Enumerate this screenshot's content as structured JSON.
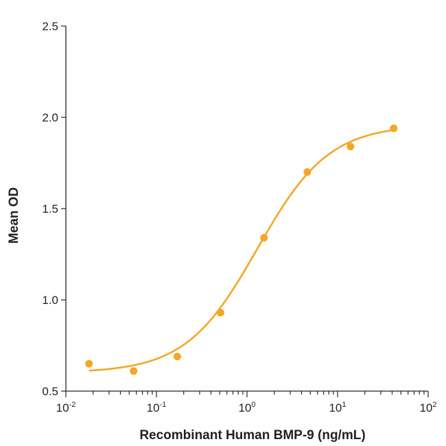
{
  "chart_data": {
    "type": "scatter",
    "title": "",
    "xlabel": "Recombinant Human BMP-9 (ng/mL)",
    "ylabel": "Mean OD",
    "x_scale": "log",
    "xlim": [
      0.01,
      100
    ],
    "ylim": [
      0.5,
      2.5
    ],
    "x_ticks": [
      {
        "value": 0.01,
        "base": "10",
        "exp": "-2"
      },
      {
        "value": 0.1,
        "base": "10",
        "exp": "-1"
      },
      {
        "value": 1,
        "base": "10",
        "exp": "0"
      },
      {
        "value": 10,
        "base": "10",
        "exp": "1"
      },
      {
        "value": 100,
        "base": "10",
        "exp": "2"
      }
    ],
    "y_ticks": [
      {
        "value": 0.5,
        "label": "0.5"
      },
      {
        "value": 1.0,
        "label": "1.0"
      },
      {
        "value": 1.5,
        "label": "1.5"
      },
      {
        "value": 2.0,
        "label": "2.0"
      },
      {
        "value": 2.5,
        "label": "2.5"
      }
    ],
    "grid": false,
    "color": "#f5a623",
    "series": [
      {
        "points": [
          {
            "x": 0.018,
            "y": 0.65
          },
          {
            "x": 0.056,
            "y": 0.61
          },
          {
            "x": 0.17,
            "y": 0.69
          },
          {
            "x": 0.51,
            "y": 0.93
          },
          {
            "x": 1.54,
            "y": 1.34
          },
          {
            "x": 4.63,
            "y": 1.7
          },
          {
            "x": 13.9,
            "y": 1.84
          },
          {
            "x": 41.7,
            "y": 1.94
          }
        ],
        "fit": {
          "model": "4PL",
          "bottom": 0.6,
          "top": 1.96,
          "ec50": 1.3,
          "hill": 1.1,
          "x_range": [
            0.018,
            41.7
          ]
        }
      }
    ]
  }
}
